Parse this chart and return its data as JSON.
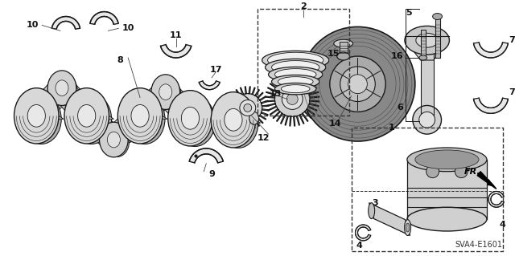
{
  "bg_color": "#ffffff",
  "fig_width": 6.4,
  "fig_height": 3.19,
  "dpi": 100,
  "diagram_code": "SVA4-E1601",
  "line_color": "#1a1a1a",
  "fill_light": "#e8e8e8",
  "fill_mid": "#cccccc",
  "fill_dark": "#999999"
}
